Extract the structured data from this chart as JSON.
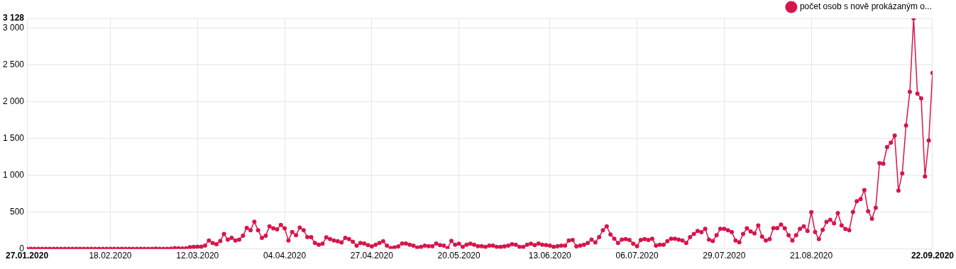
{
  "chart_data": {
    "type": "line",
    "legend": "top right",
    "marker": "circle",
    "line_style": "solid",
    "grid": true,
    "ylim": [
      0,
      3128
    ],
    "yticks": [
      0,
      {
        "value": 500,
        "label": "500"
      },
      {
        "value": 1000,
        "label": "1 000"
      },
      {
        "value": 1500,
        "label": "1 500"
      },
      {
        "value": 2000,
        "label": "2 000"
      },
      {
        "value": 2500,
        "label": "2 500"
      },
      {
        "value": 3000,
        "label": "3 000"
      },
      {
        "value": 3128,
        "label": "3 128"
      }
    ],
    "xlim": [
      "2020-01-27",
      "2020-09-22"
    ],
    "xticks": [
      {
        "value": "2020-01-27",
        "label": "27.01.2020"
      },
      {
        "value": "2020-02-18",
        "label": "18.02.2020"
      },
      {
        "value": "2020-03-12",
        "label": "12.03.2020"
      },
      {
        "value": "2020-04-04",
        "label": "04.04.2020"
      },
      {
        "value": "2020-04-27",
        "label": "27.04.2020"
      },
      {
        "value": "2020-05-20",
        "label": "20.05.2020"
      },
      {
        "value": "2020-06-13",
        "label": "13.06.2020"
      },
      {
        "value": "2020-07-06",
        "label": "06.07.2020"
      },
      {
        "value": "2020-07-29",
        "label": "29.07.2020"
      },
      {
        "value": "2020-08-21",
        "label": "21.08.2020"
      },
      {
        "value": "2020-09-22",
        "label": "22.09.2020"
      }
    ],
    "x": [
      "2020-01-27",
      "2020-01-28",
      "2020-01-29",
      "2020-01-30",
      "2020-01-31",
      "2020-02-01",
      "2020-02-02",
      "2020-02-03",
      "2020-02-04",
      "2020-02-05",
      "2020-02-06",
      "2020-02-07",
      "2020-02-08",
      "2020-02-09",
      "2020-02-10",
      "2020-02-11",
      "2020-02-12",
      "2020-02-13",
      "2020-02-14",
      "2020-02-15",
      "2020-02-16",
      "2020-02-17",
      "2020-02-18",
      "2020-02-19",
      "2020-02-20",
      "2020-02-21",
      "2020-02-22",
      "2020-02-23",
      "2020-02-24",
      "2020-02-25",
      "2020-02-26",
      "2020-02-27",
      "2020-02-28",
      "2020-02-29",
      "2020-03-01",
      "2020-03-02",
      "2020-03-03",
      "2020-03-04",
      "2020-03-05",
      "2020-03-06",
      "2020-03-07",
      "2020-03-08",
      "2020-03-09",
      "2020-03-10",
      "2020-03-11",
      "2020-03-12",
      "2020-03-13",
      "2020-03-14",
      "2020-03-15",
      "2020-03-16",
      "2020-03-17",
      "2020-03-18",
      "2020-03-19",
      "2020-03-20",
      "2020-03-21",
      "2020-03-22",
      "2020-03-23",
      "2020-03-24",
      "2020-03-25",
      "2020-03-26",
      "2020-03-27",
      "2020-03-28",
      "2020-03-29",
      "2020-03-30",
      "2020-03-31",
      "2020-04-01",
      "2020-04-02",
      "2020-04-03",
      "2020-04-04",
      "2020-04-05",
      "2020-04-06",
      "2020-04-07",
      "2020-04-08",
      "2020-04-09",
      "2020-04-10",
      "2020-04-11",
      "2020-04-12",
      "2020-04-13",
      "2020-04-14",
      "2020-04-15",
      "2020-04-16",
      "2020-04-17",
      "2020-04-18",
      "2020-04-19",
      "2020-04-20",
      "2020-04-21",
      "2020-04-22",
      "2020-04-23",
      "2020-04-24",
      "2020-04-25",
      "2020-04-26",
      "2020-04-27",
      "2020-04-28",
      "2020-04-29",
      "2020-04-30",
      "2020-05-01",
      "2020-05-02",
      "2020-05-03",
      "2020-05-04",
      "2020-05-05",
      "2020-05-06",
      "2020-05-07",
      "2020-05-08",
      "2020-05-09",
      "2020-05-10",
      "2020-05-11",
      "2020-05-12",
      "2020-05-13",
      "2020-05-14",
      "2020-05-15",
      "2020-05-16",
      "2020-05-17",
      "2020-05-18",
      "2020-05-19",
      "2020-05-20",
      "2020-05-21",
      "2020-05-22",
      "2020-05-23",
      "2020-05-24",
      "2020-05-25",
      "2020-05-26",
      "2020-05-27",
      "2020-05-28",
      "2020-05-29",
      "2020-05-30",
      "2020-05-31",
      "2020-06-01",
      "2020-06-02",
      "2020-06-03",
      "2020-06-04",
      "2020-06-05",
      "2020-06-06",
      "2020-06-07",
      "2020-06-08",
      "2020-06-09",
      "2020-06-10",
      "2020-06-11",
      "2020-06-12",
      "2020-06-13",
      "2020-06-14",
      "2020-06-15",
      "2020-06-16",
      "2020-06-17",
      "2020-06-18",
      "2020-06-19",
      "2020-06-20",
      "2020-06-21",
      "2020-06-22",
      "2020-06-23",
      "2020-06-24",
      "2020-06-25",
      "2020-06-26",
      "2020-06-27",
      "2020-06-28",
      "2020-06-29",
      "2020-06-30",
      "2020-07-01",
      "2020-07-02",
      "2020-07-03",
      "2020-07-04",
      "2020-07-05",
      "2020-07-06",
      "2020-07-07",
      "2020-07-08",
      "2020-07-09",
      "2020-07-10",
      "2020-07-11",
      "2020-07-12",
      "2020-07-13",
      "2020-07-14",
      "2020-07-15",
      "2020-07-16",
      "2020-07-17",
      "2020-07-18",
      "2020-07-19",
      "2020-07-20",
      "2020-07-21",
      "2020-07-22",
      "2020-07-23",
      "2020-07-24",
      "2020-07-25",
      "2020-07-26",
      "2020-07-27",
      "2020-07-28",
      "2020-07-29",
      "2020-07-30",
      "2020-07-31",
      "2020-08-01",
      "2020-08-02",
      "2020-08-03",
      "2020-08-04",
      "2020-08-05",
      "2020-08-06",
      "2020-08-07",
      "2020-08-08",
      "2020-08-09",
      "2020-08-10",
      "2020-08-11",
      "2020-08-12",
      "2020-08-13",
      "2020-08-14",
      "2020-08-15",
      "2020-08-16",
      "2020-08-17",
      "2020-08-18",
      "2020-08-19",
      "2020-08-20",
      "2020-08-21",
      "2020-08-22",
      "2020-08-23",
      "2020-08-24",
      "2020-08-25",
      "2020-08-26",
      "2020-08-27",
      "2020-08-28",
      "2020-08-29",
      "2020-08-30",
      "2020-08-31",
      "2020-09-01",
      "2020-09-02",
      "2020-09-03",
      "2020-09-04",
      "2020-09-05",
      "2020-09-06",
      "2020-09-07",
      "2020-09-08",
      "2020-09-09",
      "2020-09-10",
      "2020-09-11",
      "2020-09-12",
      "2020-09-13",
      "2020-09-14",
      "2020-09-15",
      "2020-09-16",
      "2020-09-17",
      "2020-09-18",
      "2020-09-19",
      "2020-09-20",
      "2020-09-21",
      "2020-09-22"
    ],
    "series": [
      {
        "name": "počet osob s nově prokázaným o...",
        "color": "#d7154a",
        "values": [
          0,
          0,
          0,
          0,
          0,
          0,
          0,
          0,
          0,
          0,
          0,
          0,
          0,
          0,
          0,
          0,
          0,
          0,
          0,
          0,
          0,
          0,
          0,
          0,
          0,
          0,
          0,
          0,
          0,
          0,
          0,
          0,
          0,
          0,
          3,
          0,
          2,
          0,
          3,
          11,
          7,
          6,
          9,
          23,
          28,
          30,
          30,
          45,
          115,
          80,
          63,
          107,
          202,
          125,
          150,
          115,
          125,
          178,
          285,
          254,
          369,
          254,
          150,
          178,
          307,
          279,
          265,
          324,
          279,
          115,
          230,
          185,
          289,
          254,
          160,
          160,
          80,
          56,
          70,
          157,
          132,
          115,
          105,
          87,
          150,
          132,
          98,
          45,
          80,
          73,
          52,
          35,
          56,
          80,
          105,
          45,
          10,
          21,
          35,
          73,
          73,
          56,
          45,
          17,
          28,
          45,
          38,
          38,
          73,
          52,
          45,
          10,
          108,
          56,
          70,
          28,
          56,
          70,
          56,
          38,
          38,
          28,
          45,
          45,
          28,
          28,
          35,
          45,
          63,
          56,
          28,
          28,
          56,
          70,
          52,
          73,
          56,
          52,
          45,
          28,
          38,
          45,
          45,
          115,
          122,
          35,
          45,
          56,
          80,
          125,
          87,
          160,
          254,
          307,
          195,
          139,
          80,
          125,
          132,
          122,
          70,
          38,
          122,
          132,
          122,
          139,
          45,
          56,
          56,
          105,
          139,
          139,
          125,
          115,
          80,
          160,
          202,
          244,
          226,
          272,
          125,
          107,
          185,
          272,
          272,
          254,
          230,
          115,
          91,
          202,
          279,
          237,
          209,
          317,
          167,
          115,
          132,
          282,
          282,
          331,
          279,
          185,
          115,
          185,
          272,
          307,
          244,
          498,
          230,
          132,
          257,
          365,
          396,
          347,
          486,
          319,
          271,
          253,
          500,
          646,
          677,
          799,
          510,
          410,
          559,
          1163,
          1156,
          1382,
          1441,
          1538,
          792,
          1024,
          1674,
          2132,
          3128,
          2108,
          2042,
          983,
          1472,
          2389
        ]
      }
    ]
  }
}
